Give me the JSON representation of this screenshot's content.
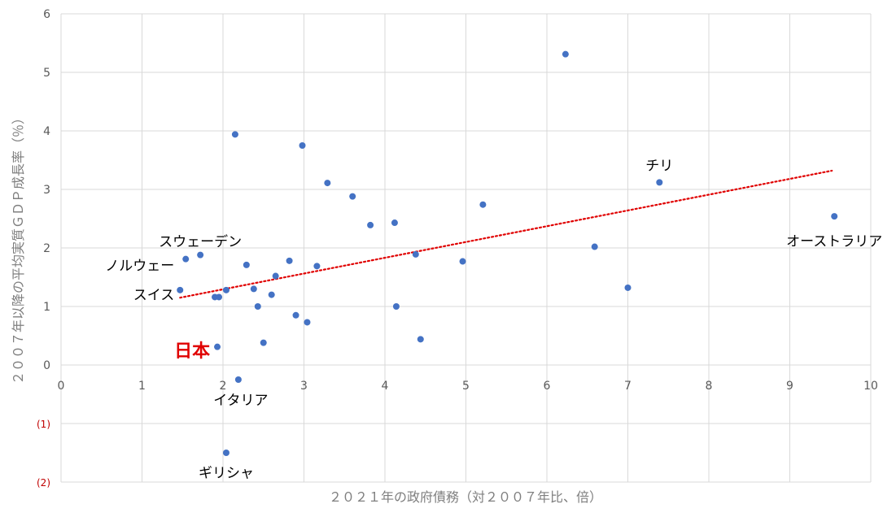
{
  "chart_data": {
    "type": "scatter",
    "title": "",
    "xlabel": "２０２１年の政府債務（対２００７年比、倍）",
    "ylabel": "２００７年以降の平均実質ＧＤＰ成長率（％）",
    "xlim": [
      0,
      10
    ],
    "ylim": [
      -2,
      6
    ],
    "x_ticks": [
      "0",
      "1",
      "2",
      "3",
      "4",
      "5",
      "6",
      "7",
      "8",
      "9",
      "10"
    ],
    "y_ticks": [
      {
        "value": 6,
        "label": "6"
      },
      {
        "value": 5,
        "label": "5"
      },
      {
        "value": 4,
        "label": "4"
      },
      {
        "value": 3,
        "label": "3"
      },
      {
        "value": 2,
        "label": "2"
      },
      {
        "value": 1,
        "label": "1"
      },
      {
        "value": 0,
        "label": "0"
      },
      {
        "value": -1,
        "label": "(1)"
      },
      {
        "value": -2,
        "label": "(2)"
      }
    ],
    "grid": true,
    "marker_color": "#4472c4",
    "trendline": {
      "style": "dotted",
      "color": "#e00000",
      "x0": 1.47,
      "y0": 1.15,
      "x1": 9.52,
      "y1": 3.32
    },
    "points": [
      {
        "x": 1.47,
        "y": 1.28
      },
      {
        "x": 1.54,
        "y": 1.81
      },
      {
        "x": 1.72,
        "y": 1.88
      },
      {
        "x": 1.9,
        "y": 1.16
      },
      {
        "x": 1.95,
        "y": 1.16
      },
      {
        "x": 1.93,
        "y": 0.31
      },
      {
        "x": 2.04,
        "y": 1.28
      },
      {
        "x": 2.04,
        "y": -1.5
      },
      {
        "x": 2.15,
        "y": 3.94
      },
      {
        "x": 2.19,
        "y": -0.25
      },
      {
        "x": 2.29,
        "y": 1.71
      },
      {
        "x": 2.38,
        "y": 1.3
      },
      {
        "x": 2.43,
        "y": 1.0
      },
      {
        "x": 2.5,
        "y": 0.38
      },
      {
        "x": 2.6,
        "y": 1.2
      },
      {
        "x": 2.65,
        "y": 1.52
      },
      {
        "x": 2.82,
        "y": 1.78
      },
      {
        "x": 2.9,
        "y": 0.85
      },
      {
        "x": 2.98,
        "y": 3.75
      },
      {
        "x": 3.04,
        "y": 0.73
      },
      {
        "x": 3.16,
        "y": 1.69
      },
      {
        "x": 3.29,
        "y": 3.11
      },
      {
        "x": 3.6,
        "y": 2.88
      },
      {
        "x": 3.82,
        "y": 2.39
      },
      {
        "x": 4.12,
        "y": 2.43
      },
      {
        "x": 4.14,
        "y": 1.0
      },
      {
        "x": 4.38,
        "y": 1.89
      },
      {
        "x": 4.44,
        "y": 0.44
      },
      {
        "x": 4.96,
        "y": 1.77
      },
      {
        "x": 5.21,
        "y": 2.74
      },
      {
        "x": 6.23,
        "y": 5.31
      },
      {
        "x": 6.59,
        "y": 2.02
      },
      {
        "x": 7.0,
        "y": 1.32
      },
      {
        "x": 7.39,
        "y": 3.12
      },
      {
        "x": 9.55,
        "y": 2.54
      }
    ],
    "annotations": [
      {
        "text": "スウェーデン",
        "x": 1.72,
        "y": 2.11,
        "anchor": "middle",
        "highlight": false
      },
      {
        "text": "ノルウェー",
        "x": 1.4,
        "y": 1.7,
        "anchor": "end",
        "highlight": false
      },
      {
        "text": "スイス",
        "x": 1.4,
        "y": 1.2,
        "anchor": "end",
        "highlight": false
      },
      {
        "text": "日本",
        "x": 1.84,
        "y": 0.22,
        "anchor": "end",
        "highlight": true
      },
      {
        "text": "イタリア",
        "x": 2.22,
        "y": -0.6,
        "anchor": "middle",
        "highlight": false
      },
      {
        "text": "ギリシャ",
        "x": 2.04,
        "y": -1.84,
        "anchor": "middle",
        "highlight": false
      },
      {
        "text": "チリ",
        "x": 7.39,
        "y": 3.41,
        "anchor": "middle",
        "highlight": false
      },
      {
        "text": "オーストラリア",
        "x": 9.55,
        "y": 2.12,
        "anchor": "middle",
        "highlight": false
      }
    ]
  }
}
